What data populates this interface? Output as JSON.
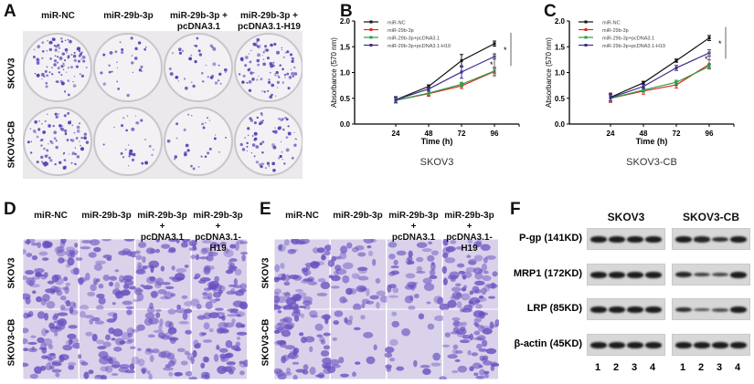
{
  "panels": {
    "A": {
      "label": "A",
      "columns": [
        "miR-NC",
        "miR-29b-3p",
        "miR-29b-3p +\npcDNA3.1",
        "miR-29b-3p +\npcDNA3.1-H19"
      ],
      "rows": [
        "SKOV3",
        "SKOV3-CB"
      ],
      "colony_density": [
        [
          0.9,
          0.25,
          0.35,
          0.85
        ],
        [
          0.8,
          0.25,
          0.25,
          0.6
        ]
      ]
    },
    "D": {
      "label": "D",
      "columns": [
        "miR-NC",
        "miR-29b-3p",
        "miR-29b-3p +\npcDNA3.1",
        "miR-29b-3p +\npcDNA3.1-H19"
      ],
      "rows": [
        "SKOV3",
        "SKOV3-CB"
      ]
    },
    "E": {
      "label": "E",
      "columns": [
        "miR-NC",
        "miR-29b-3p",
        "miR-29b-3p +\npcDNA3.1",
        "miR-29b-3p +\npcDNA3.1-H19"
      ],
      "rows": [
        "SKOV3",
        "SKOV3-CB"
      ]
    },
    "F": {
      "label": "F",
      "groups": [
        "SKOV3",
        "SKOV3-CB"
      ],
      "proteins": [
        "P-gp  (141KD)",
        "MRP1  (172KD)",
        "LRP  (85KD)",
        "β-actin  (45KD)"
      ],
      "lanes": [
        "1",
        "2",
        "3",
        "4"
      ]
    }
  },
  "colors": {
    "miR-NC": "#111111",
    "miR-29b-3p": "#e3261f",
    "miR-29b-3p+pcDNA3.1": "#2ca048",
    "miR-29b-3p+pcDNA3.1-H19": "#3d2a8f",
    "stain": "#5b3fb5"
  },
  "chart_data": [
    {
      "panel": "B",
      "type": "line",
      "title": "SKOV3",
      "xlabel": "Time (h)",
      "ylabel": "Absorbance (570 nm)",
      "x": [
        24,
        48,
        72,
        96
      ],
      "xticks": [
        "24",
        "48",
        "72",
        "96"
      ],
      "yticks": [
        "0.0",
        "0.5",
        "1.0",
        "1.5",
        "2.0"
      ],
      "ylim": [
        0,
        2
      ],
      "legend": "top-left",
      "significance": [
        "*",
        "*"
      ],
      "series": [
        {
          "name": "miR-NC",
          "values": [
            0.47,
            0.73,
            1.23,
            1.56
          ],
          "err": [
            0.06,
            0.03,
            0.12,
            0.05
          ]
        },
        {
          "name": "miR-29b-3p",
          "values": [
            0.46,
            0.59,
            0.74,
            1.02
          ],
          "err": [
            0.05,
            0.05,
            0.05,
            0.08
          ]
        },
        {
          "name": "miR-29b-3p+pcDNA3.1",
          "values": [
            0.46,
            0.6,
            0.77,
            1.03
          ],
          "err": [
            0.05,
            0.04,
            0.04,
            0.05
          ]
        },
        {
          "name": "miR-29b-3p+pcDNA3.1-H19",
          "values": [
            0.47,
            0.68,
            1.01,
            1.31
          ],
          "err": [
            0.05,
            0.04,
            0.12,
            0.05
          ]
        }
      ]
    },
    {
      "panel": "C",
      "type": "line",
      "title": "SKOV3-CB",
      "xlabel": "Time (h)",
      "ylabel": "Absorbance (570 nm)",
      "x": [
        24,
        48,
        72,
        96
      ],
      "xticks": [
        "24",
        "48",
        "72",
        "96"
      ],
      "yticks": [
        "0.0",
        "0.5",
        "1.0",
        "1.5",
        "2.0"
      ],
      "ylim": [
        0,
        2
      ],
      "legend": "top-left",
      "significance": [
        "*",
        "*"
      ],
      "series": [
        {
          "name": "miR-NC",
          "values": [
            0.52,
            0.8,
            1.23,
            1.67
          ],
          "err": [
            0.08,
            0.03,
            0.03,
            0.05
          ]
        },
        {
          "name": "miR-29b-3p",
          "values": [
            0.5,
            0.64,
            0.76,
            1.16
          ],
          "err": [
            0.08,
            0.06,
            0.06,
            0.09
          ]
        },
        {
          "name": "miR-29b-3p+pcDNA3.1",
          "values": [
            0.5,
            0.66,
            0.81,
            1.12
          ],
          "err": [
            0.06,
            0.04,
            0.04,
            0.04
          ]
        },
        {
          "name": "miR-29b-3p+pcDNA3.1-H19",
          "values": [
            0.51,
            0.73,
            1.09,
            1.38
          ],
          "err": [
            0.06,
            0.04,
            0.05,
            0.06
          ]
        }
      ]
    }
  ]
}
